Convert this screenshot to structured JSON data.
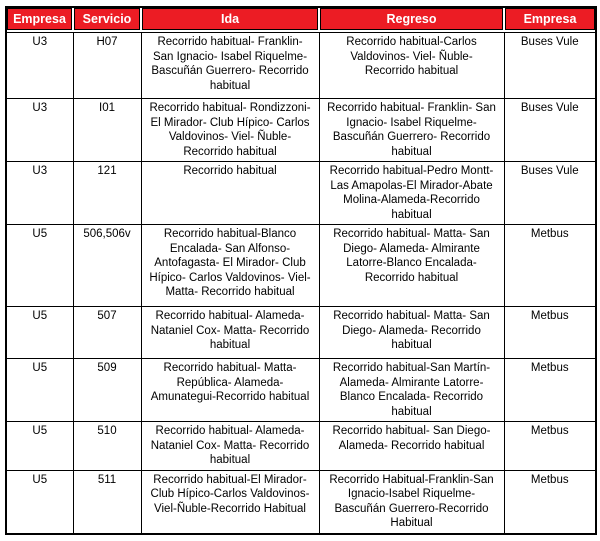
{
  "colors": {
    "header_bg": "#ec1c24",
    "header_text": "#ffffff",
    "border": "#000000"
  },
  "table": {
    "headers": [
      "Empresa",
      "Servicio",
      "Ida",
      "Regreso",
      "Empresa"
    ],
    "rows": [
      {
        "empresa": "U3",
        "servicio": "H07",
        "ida": "Recorrido habitual- Franklin- San Ignacio- Isabel Riquelme- Bascuñán Guerrero- Recorrido habitual",
        "regreso": "Recorrido habitual-Carlos Valdovinos- Viel- Ñuble- Recorrido habitual",
        "empresa_operadora": "Buses Vule"
      },
      {
        "empresa": "U3",
        "servicio": "I01",
        "ida": "Recorrido habitual- Rondizzoni- El Mirador- Club Hípico- Carlos Valdovinos- Viel- Ñuble- Recorrido habitual",
        "regreso": "Recorrido habitual- Franklin- San Ignacio- Isabel Riquelme- Bascuñán Guerrero- Recorrido habitual",
        "empresa_operadora": "Buses Vule"
      },
      {
        "empresa": "U3",
        "servicio": "121",
        "ida": "Recorrido habitual",
        "regreso": "Recorrido habitual-Pedro Montt- Las Amapolas-El Mirador-Abate Molina-Alameda-Recorrido habitual",
        "empresa_operadora": "Buses Vule"
      },
      {
        "empresa": "U5",
        "servicio": "506,506v",
        "ida": "Recorrido habitual-Blanco Encalada- San Alfonso- Antofagasta- El Mirador- Club Hípico- Carlos Valdovinos- Viel- Matta- Recorrido habitual",
        "regreso": "Recorrido habitual- Matta- San Diego- Alameda- Almirante Latorre-Blanco Encalada- Recorrido habitual",
        "empresa_operadora": "Metbus"
      },
      {
        "empresa": "U5",
        "servicio": "507",
        "ida": "Recorrido habitual- Alameda- Nataniel Cox- Matta- Recorrido habitual",
        "regreso": "Recorrido habitual- Matta- San Diego- Alameda- Recorrido habitual",
        "empresa_operadora": "Metbus"
      },
      {
        "empresa": "U5",
        "servicio": "509",
        "ida": "Recorrido habitual- Matta- República- Alameda- Amunategui-Recorrido habitual",
        "regreso": "Recorrido habitual-San Martín- Alameda- Almirante Latorre- Blanco Encalada- Recorrido habitual",
        "empresa_operadora": "Metbus"
      },
      {
        "empresa": "U5",
        "servicio": "510",
        "ida": "Recorrido habitual- Alameda- Nataniel Cox- Matta- Recorrido habitual",
        "regreso": "Recorrido habitual- San Diego- Alameda- Recorrido habitual",
        "empresa_operadora": "Metbus"
      },
      {
        "empresa": "U5",
        "servicio": "511",
        "ida": "Recorrido habitual-El Mirador- Club Hípico-Carlos Valdovinos- Viel-Ñuble-Recorrido Habitual",
        "regreso": "Recorrido Habitual-Franklin-San Ignacio-Isabel Riquelme-Bascuñán Guerrero-Recorrido Habitual",
        "empresa_operadora": "Metbus"
      }
    ]
  }
}
